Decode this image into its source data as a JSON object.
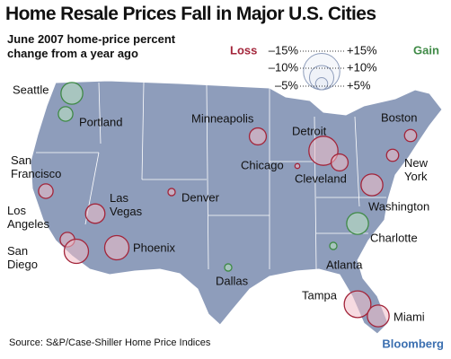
{
  "chart_data": {
    "type": "bubble-map",
    "title": "Home Resale Prices Fall in Major U.S. Cities",
    "subtitle": "June 2007 home-price percent change from a year ago",
    "source": "Source: S&P/Case-Shiller Home Price Indices",
    "brand": "Bloomberg",
    "legend": {
      "loss_label": "Loss",
      "gain_label": "Gain",
      "loss_sizes": [
        {
          "value": -15,
          "label": "–15%"
        },
        {
          "value": -10,
          "label": "–10%"
        },
        {
          "value": -5,
          "label": "–5%"
        }
      ],
      "gain_sizes": [
        {
          "value": 15,
          "label": "+15%"
        },
        {
          "value": 10,
          "label": "+10%"
        },
        {
          "value": 5,
          "label": "+5%"
        }
      ]
    },
    "colors": {
      "loss": "#a3253a",
      "gain": "#3f8a46"
    },
    "cities": [
      "Seattle",
      "Portland",
      "San Francisco",
      "Los Angeles",
      "San Diego",
      "Las Vegas",
      "Phoenix",
      "Denver",
      "Dallas",
      "Minneapolis",
      "Chicago",
      "Detroit",
      "Cleveland",
      "Boston",
      "New York",
      "Washington",
      "Charlotte",
      "Atlanta",
      "Tampa",
      "Miami"
    ],
    "values": [
      9,
      6,
      -6,
      -6,
      -10,
      -8,
      -10,
      -3,
      3,
      -7,
      -2,
      -12,
      -7,
      -5,
      -5,
      -9,
      9,
      3,
      -11,
      -9
    ]
  }
}
